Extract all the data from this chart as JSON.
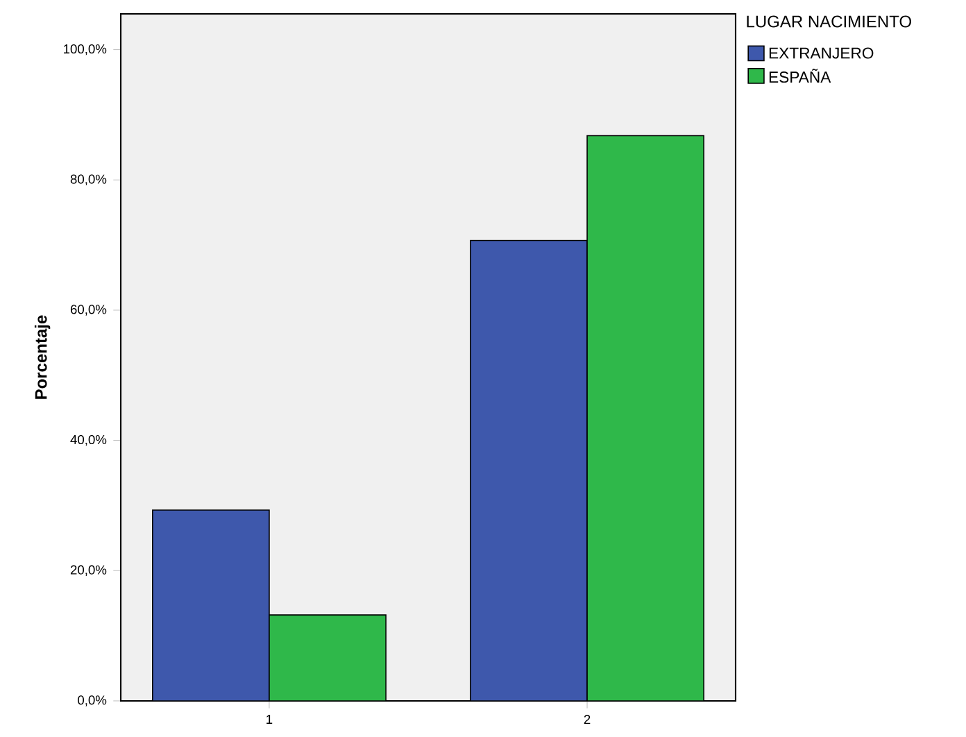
{
  "chart_data": {
    "type": "bar",
    "ylabel": "Porcentaje",
    "legend_title": "LUGAR NACIMIENTO",
    "categories": [
      "1",
      "2"
    ],
    "series": [
      {
        "name": "EXTRANJERO",
        "color": "#3e58ac",
        "values": [
          29.3,
          70.7
        ]
      },
      {
        "name": "ESPAÑA",
        "color": "#2fb84a",
        "values": [
          13.2,
          86.8
        ]
      }
    ],
    "ylim": [
      0,
      105.5
    ],
    "yticks": [
      {
        "value": 0,
        "label": "0,0%"
      },
      {
        "value": 20,
        "label": "20,0%"
      },
      {
        "value": 40,
        "label": "40,0%"
      },
      {
        "value": 60,
        "label": "60,0%"
      },
      {
        "value": 80,
        "label": "80,0%"
      },
      {
        "value": 100,
        "label": "100,0%"
      }
    ],
    "legend": "top right",
    "grid": false
  }
}
